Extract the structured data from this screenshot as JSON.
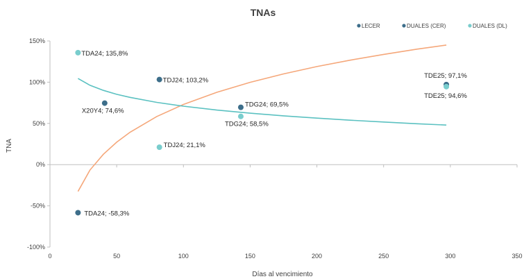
{
  "chart_data": {
    "type": "scatter",
    "title": "TNAs",
    "xlabel": "Días al vencimiento",
    "ylabel": "TNA",
    "xlim": [
      0,
      350
    ],
    "ylim": [
      -100,
      150
    ],
    "x_ticks": [
      0,
      50,
      100,
      150,
      200,
      250,
      300,
      350
    ],
    "y_ticks": [
      -100,
      -50,
      0,
      50,
      100,
      150
    ],
    "y_tick_labels": [
      "-100%",
      "-50%",
      "0%",
      "50%",
      "100%",
      "150%"
    ],
    "legend_position": "top-right",
    "series": [
      {
        "name": "LECER",
        "color": "#3d6e8a",
        "points": []
      },
      {
        "name": "DUALES (CER)",
        "color": "#3d6e8a",
        "points": [
          {
            "x": 21,
            "y": -58.3,
            "label": "TDA24; -58,3%"
          },
          {
            "x": 41,
            "y": 74.6,
            "label": "X20Y4; 74,6%"
          },
          {
            "x": 82,
            "y": 103.2,
            "label": "TDJ24; 103,2%"
          },
          {
            "x": 143,
            "y": 69.5,
            "label": "TDG24; 69,5%"
          },
          {
            "x": 297,
            "y": 97.1,
            "label": "TDE25; 97,1%"
          }
        ]
      },
      {
        "name": "DUALES (DL)",
        "color": "#79cdcd",
        "points": [
          {
            "x": 21,
            "y": 135.8,
            "label": "TDA24; 135,8%"
          },
          {
            "x": 82,
            "y": 21.1,
            "label": "TDJ24; 21,1%"
          },
          {
            "x": 143,
            "y": 58.5,
            "label": "TDG24; 58,5%"
          },
          {
            "x": 297,
            "y": 94.6,
            "label": "TDE25; 94,6%"
          }
        ]
      }
    ],
    "trendlines": [
      {
        "color": "#f5a77a",
        "x": [
          21,
          30,
          40,
          50,
          60,
          80,
          100,
          125,
          150,
          175,
          200,
          225,
          250,
          275,
          297
        ],
        "y": [
          -32.5,
          -6.5,
          12.5,
          27.2,
          39.3,
          58.3,
          73.0,
          87.7,
          99.8,
          110.0,
          118.9,
          126.7,
          133.7,
          140.1,
          145.0
        ]
      },
      {
        "color": "#5bc1c1",
        "x": [
          21,
          30,
          40,
          50,
          60,
          80,
          100,
          125,
          150,
          175,
          200,
          225,
          250,
          275,
          297
        ],
        "y": [
          104.5,
          96.2,
          90.1,
          85.3,
          81.6,
          75.5,
          70.9,
          66.2,
          62.4,
          59.2,
          56.4,
          53.9,
          51.7,
          49.6,
          48.0
        ]
      }
    ]
  }
}
